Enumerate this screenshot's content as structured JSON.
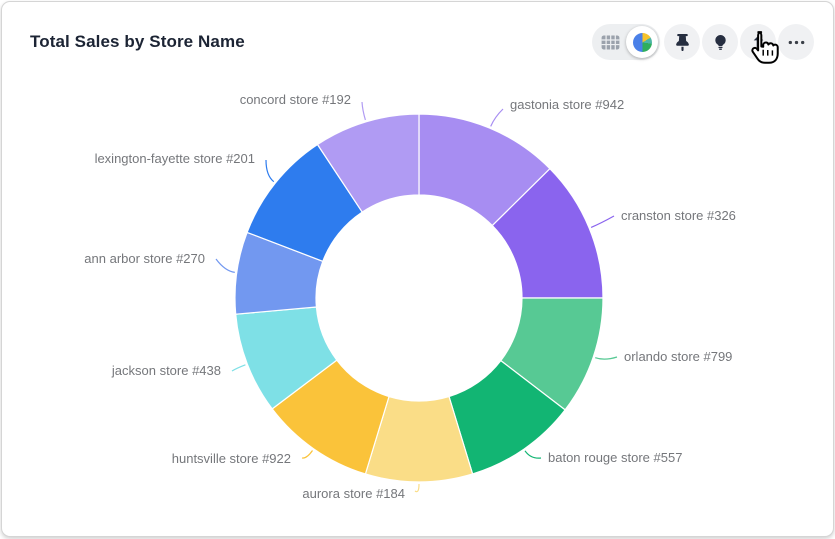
{
  "header": {
    "title": "Total Sales by Store Name"
  },
  "toolbar": {
    "view_toggle": {
      "options": [
        {
          "name": "table-view",
          "icon": "table-grid-icon",
          "active": false
        },
        {
          "name": "chart-view",
          "icon": "pie-chart-icon",
          "active": true
        }
      ]
    },
    "buttons": [
      {
        "name": "pin",
        "icon": "pushpin-icon"
      },
      {
        "name": "insights",
        "icon": "lightbulb-icon"
      },
      {
        "name": "share",
        "icon": "share-up-arrow-icon",
        "cursor_hover": true
      },
      {
        "name": "more",
        "icon": "ellipsis-icon"
      }
    ]
  },
  "cursor": {
    "type": "hand-pointer-cursor",
    "over": "share-button"
  },
  "chart_data": {
    "type": "pie",
    "subtype": "donut",
    "title": "Total Sales by Store Name",
    "values_note": "numeric sales values not displayed on screen; pct estimated from arc angles",
    "start_angle_deg": 0,
    "direction": "clockwise",
    "inner_radius_ratio": 0.56,
    "labels_position": "outside-with-leader-lines",
    "legend": "none",
    "slices": [
      {
        "label": "gastonia store #942",
        "pct": 12.6,
        "color": "#a78df2"
      },
      {
        "label": "cranston store #326",
        "pct": 12.4,
        "color": "#8a64ee"
      },
      {
        "label": "orlando store #799",
        "pct": 10.4,
        "color": "#57c994"
      },
      {
        "label": "baton rouge store #557",
        "pct": 9.9,
        "color": "#12b573"
      },
      {
        "label": "aurora store #184",
        "pct": 9.4,
        "color": "#fadd87"
      },
      {
        "label": "huntsville store #922",
        "pct": 10.0,
        "color": "#fac33a"
      },
      {
        "label": "jackson store #438",
        "pct": 8.9,
        "color": "#7ee0e6"
      },
      {
        "label": "ann arbor store #270",
        "pct": 7.2,
        "color": "#7298f0"
      },
      {
        "label": "lexington-fayette store #201",
        "pct": 9.9,
        "color": "#2e7cee"
      },
      {
        "label": "concord store #192",
        "pct": 9.3,
        "color": "#b09bf3"
      }
    ]
  },
  "ui_colors": {
    "card_border": "#d5d5d5",
    "title_text": "#1c2434",
    "label_text": "#75777b",
    "button_bg": "#f0f1f3",
    "toggle_bg": "#edeff1",
    "icon": "#262e40"
  }
}
